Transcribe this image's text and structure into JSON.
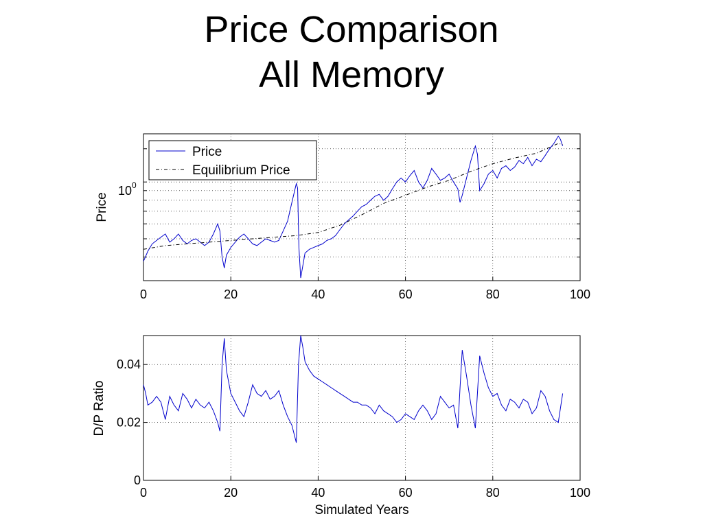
{
  "slide": {
    "title": "Price Comparison",
    "subtitle": "All Memory"
  },
  "chart_data": [
    {
      "type": "line",
      "ylabel": "Price",
      "xlabel": "",
      "xlim": [
        0,
        100
      ],
      "x_ticks": [
        "0",
        "20",
        "40",
        "60",
        "80",
        "100"
      ],
      "y_scale": "log",
      "y_tick_label": {
        "base": "10",
        "exp": "0"
      },
      "ylim": [
        0.3,
        1.8
      ],
      "grid": true,
      "legend_position": "top-left",
      "series": [
        {
          "name": "Price",
          "color": "#0000cc",
          "style": "solid",
          "points": [
            [
              0,
              0.38
            ],
            [
              1,
              0.43
            ],
            [
              2,
              0.47
            ],
            [
              3,
              0.49
            ],
            [
              4,
              0.51
            ],
            [
              5,
              0.53
            ],
            [
              6,
              0.48
            ],
            [
              7,
              0.5
            ],
            [
              8,
              0.53
            ],
            [
              9,
              0.49
            ],
            [
              10,
              0.47
            ],
            [
              11,
              0.49
            ],
            [
              12,
              0.5
            ],
            [
              13,
              0.48
            ],
            [
              14,
              0.46
            ],
            [
              15,
              0.48
            ],
            [
              16,
              0.53
            ],
            [
              17,
              0.6
            ],
            [
              17.5,
              0.55
            ],
            [
              18,
              0.4
            ],
            [
              18.5,
              0.35
            ],
            [
              19,
              0.41
            ],
            [
              20,
              0.45
            ],
            [
              21,
              0.48
            ],
            [
              22,
              0.51
            ],
            [
              23,
              0.53
            ],
            [
              24,
              0.5
            ],
            [
              25,
              0.47
            ],
            [
              26,
              0.46
            ],
            [
              27,
              0.48
            ],
            [
              28,
              0.5
            ],
            [
              29,
              0.49
            ],
            [
              30,
              0.48
            ],
            [
              31,
              0.49
            ],
            [
              32,
              0.55
            ],
            [
              33,
              0.62
            ],
            [
              34,
              0.78
            ],
            [
              35,
              0.98
            ],
            [
              35.3,
              0.93
            ],
            [
              35.6,
              0.45
            ],
            [
              36,
              0.31
            ],
            [
              36.5,
              0.36
            ],
            [
              37,
              0.42
            ],
            [
              38,
              0.44
            ],
            [
              39,
              0.45
            ],
            [
              40,
              0.46
            ],
            [
              41,
              0.47
            ],
            [
              42,
              0.49
            ],
            [
              43,
              0.5
            ],
            [
              44,
              0.52
            ],
            [
              45,
              0.56
            ],
            [
              46,
              0.6
            ],
            [
              47,
              0.63
            ],
            [
              48,
              0.66
            ],
            [
              49,
              0.7
            ],
            [
              50,
              0.74
            ],
            [
              51,
              0.76
            ],
            [
              52,
              0.8
            ],
            [
              53,
              0.84
            ],
            [
              54,
              0.86
            ],
            [
              55,
              0.8
            ],
            [
              56,
              0.84
            ],
            [
              57,
              0.92
            ],
            [
              58,
              1.0
            ],
            [
              59,
              1.05
            ],
            [
              60,
              1.0
            ],
            [
              61,
              1.08
            ],
            [
              62,
              1.15
            ],
            [
              63,
              1.0
            ],
            [
              64,
              0.93
            ],
            [
              65,
              1.02
            ],
            [
              66,
              1.18
            ],
            [
              67,
              1.1
            ],
            [
              68,
              1.02
            ],
            [
              69,
              1.05
            ],
            [
              70,
              1.1
            ],
            [
              71,
              1.0
            ],
            [
              72,
              0.92
            ],
            [
              72.5,
              0.78
            ],
            [
              73,
              0.85
            ],
            [
              74,
              1.05
            ],
            [
              75,
              1.3
            ],
            [
              76,
              1.55
            ],
            [
              76.5,
              1.4
            ],
            [
              77,
              0.9
            ],
            [
              78,
              0.98
            ],
            [
              79,
              1.1
            ],
            [
              80,
              1.15
            ],
            [
              81,
              1.05
            ],
            [
              82,
              1.18
            ],
            [
              83,
              1.22
            ],
            [
              84,
              1.15
            ],
            [
              85,
              1.2
            ],
            [
              86,
              1.3
            ],
            [
              87,
              1.25
            ],
            [
              88,
              1.35
            ],
            [
              89,
              1.22
            ],
            [
              90,
              1.32
            ],
            [
              91,
              1.28
            ],
            [
              92,
              1.38
            ],
            [
              93,
              1.5
            ],
            [
              94,
              1.6
            ],
            [
              95,
              1.75
            ],
            [
              95.5,
              1.68
            ],
            [
              96,
              1.55
            ]
          ]
        },
        {
          "name": "Equilibrium Price",
          "color": "#000000",
          "style": "dash-dot",
          "points": [
            [
              0,
              0.44
            ],
            [
              5,
              0.46
            ],
            [
              10,
              0.47
            ],
            [
              15,
              0.48
            ],
            [
              20,
              0.49
            ],
            [
              25,
              0.5
            ],
            [
              30,
              0.51
            ],
            [
              35,
              0.52
            ],
            [
              40,
              0.54
            ],
            [
              45,
              0.59
            ],
            [
              50,
              0.67
            ],
            [
              55,
              0.77
            ],
            [
              60,
              0.85
            ],
            [
              65,
              0.94
            ],
            [
              70,
              1.02
            ],
            [
              75,
              1.14
            ],
            [
              80,
              1.25
            ],
            [
              85,
              1.34
            ],
            [
              90,
              1.42
            ],
            [
              95,
              1.6
            ],
            [
              96,
              1.58
            ]
          ]
        }
      ]
    },
    {
      "type": "line",
      "ylabel": "D/P Ratio",
      "xlabel": "Simulated Years",
      "xlim": [
        0,
        100
      ],
      "ylim": [
        0,
        0.05
      ],
      "x_ticks": [
        "0",
        "20",
        "40",
        "60",
        "80",
        "100"
      ],
      "y_ticks": [
        "0",
        "0.02",
        "0.04"
      ],
      "grid": true,
      "series": [
        {
          "color": "#0000cc",
          "style": "solid",
          "points": [
            [
              0,
              0.033
            ],
            [
              0.5,
              0.03
            ],
            [
              1,
              0.026
            ],
            [
              2,
              0.027
            ],
            [
              3,
              0.029
            ],
            [
              4,
              0.027
            ],
            [
              5,
              0.021
            ],
            [
              6,
              0.029
            ],
            [
              7,
              0.026
            ],
            [
              8,
              0.024
            ],
            [
              9,
              0.03
            ],
            [
              10,
              0.028
            ],
            [
              11,
              0.025
            ],
            [
              12,
              0.028
            ],
            [
              13,
              0.026
            ],
            [
              14,
              0.025
            ],
            [
              15,
              0.027
            ],
            [
              16,
              0.024
            ],
            [
              17,
              0.02
            ],
            [
              17.5,
              0.017
            ],
            [
              18,
              0.04
            ],
            [
              18.5,
              0.049
            ],
            [
              19,
              0.038
            ],
            [
              20,
              0.03
            ],
            [
              21,
              0.027
            ],
            [
              22,
              0.024
            ],
            [
              23,
              0.022
            ],
            [
              24,
              0.027
            ],
            [
              25,
              0.033
            ],
            [
              26,
              0.03
            ],
            [
              27,
              0.029
            ],
            [
              28,
              0.031
            ],
            [
              29,
              0.028
            ],
            [
              30,
              0.029
            ],
            [
              31,
              0.031
            ],
            [
              32,
              0.026
            ],
            [
              33,
              0.022
            ],
            [
              34,
              0.019
            ],
            [
              35,
              0.013
            ],
            [
              35.5,
              0.04
            ],
            [
              36,
              0.051
            ],
            [
              36.5,
              0.046
            ],
            [
              37,
              0.041
            ],
            [
              38,
              0.038
            ],
            [
              39,
              0.036
            ],
            [
              40,
              0.035
            ],
            [
              41,
              0.034
            ],
            [
              42,
              0.033
            ],
            [
              43,
              0.032
            ],
            [
              44,
              0.031
            ],
            [
              45,
              0.03
            ],
            [
              46,
              0.029
            ],
            [
              47,
              0.028
            ],
            [
              48,
              0.027
            ],
            [
              49,
              0.027
            ],
            [
              50,
              0.026
            ],
            [
              51,
              0.026
            ],
            [
              52,
              0.025
            ],
            [
              53,
              0.023
            ],
            [
              54,
              0.026
            ],
            [
              55,
              0.024
            ],
            [
              56,
              0.023
            ],
            [
              57,
              0.022
            ],
            [
              58,
              0.02
            ],
            [
              59,
              0.021
            ],
            [
              60,
              0.023
            ],
            [
              61,
              0.022
            ],
            [
              62,
              0.021
            ],
            [
              63,
              0.024
            ],
            [
              64,
              0.026
            ],
            [
              65,
              0.024
            ],
            [
              66,
              0.021
            ],
            [
              67,
              0.023
            ],
            [
              68,
              0.029
            ],
            [
              69,
              0.027
            ],
            [
              70,
              0.025
            ],
            [
              71,
              0.026
            ],
            [
              72,
              0.018
            ],
            [
              72.5,
              0.032
            ],
            [
              73,
              0.045
            ],
            [
              74,
              0.036
            ],
            [
              75,
              0.026
            ],
            [
              76,
              0.018
            ],
            [
              77,
              0.043
            ],
            [
              78,
              0.037
            ],
            [
              79,
              0.032
            ],
            [
              80,
              0.029
            ],
            [
              81,
              0.03
            ],
            [
              82,
              0.026
            ],
            [
              83,
              0.024
            ],
            [
              84,
              0.028
            ],
            [
              85,
              0.027
            ],
            [
              86,
              0.025
            ],
            [
              87,
              0.028
            ],
            [
              88,
              0.027
            ],
            [
              89,
              0.023
            ],
            [
              90,
              0.025
            ],
            [
              91,
              0.031
            ],
            [
              92,
              0.029
            ],
            [
              93,
              0.024
            ],
            [
              94,
              0.021
            ],
            [
              95,
              0.02
            ],
            [
              96,
              0.03
            ]
          ]
        }
      ]
    }
  ]
}
